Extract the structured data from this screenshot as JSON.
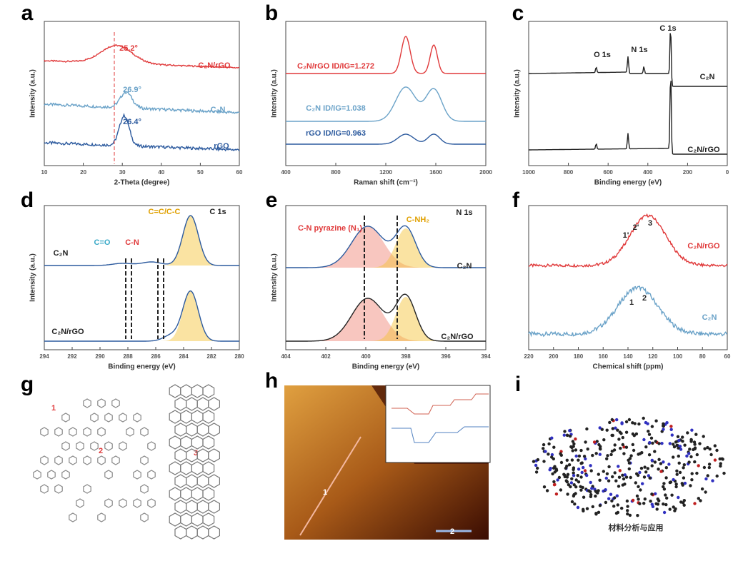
{
  "panels": [
    {
      "label": "a",
      "ylabel": "Intensity (a.u.)",
      "xlabel": "2-Theta (degree)",
      "xticks": [
        "10",
        "20",
        "30",
        "40",
        "50",
        "60"
      ],
      "texts": [
        "25.2°",
        "26.9°",
        "26.4°",
        "C₂N/rGO",
        "C₂N",
        "rGO"
      ]
    },
    {
      "label": "b",
      "ylabel": "Intensity (a.u.)",
      "xlabel": "Raman shift (cm⁻¹)",
      "xticks": [
        "400",
        "800",
        "1200",
        "1600",
        "2000"
      ],
      "texts": [
        "C₂N/rGO ID/IG=1.272",
        "C₂N ID/IG=1.038",
        "rGO ID/IG=0.963"
      ]
    },
    {
      "label": "c",
      "ylabel": "Intensity (a.u.)",
      "xlabel": "Binding energy (eV)",
      "xticks": [
        "1000",
        "800",
        "600",
        "400",
        "200",
        "0"
      ],
      "texts": [
        "C 1s",
        "O 1s",
        "N 1s",
        "C₂N",
        "C₂N/rGO"
      ]
    },
    {
      "label": "d",
      "ylabel": "Intensity (a.u.)",
      "xlabel": "Binding energy (eV)",
      "xticks": [
        "294",
        "292",
        "290",
        "288",
        "286",
        "284",
        "282",
        "280"
      ],
      "texts": [
        "C 1s",
        "C=C/C-C",
        "C=O",
        "C-N",
        "C₂N",
        "C₂N/rGO"
      ]
    },
    {
      "label": "e",
      "ylabel": "Intensity (a.u.)",
      "xlabel": "Binding energy (eV)",
      "xticks": [
        "404",
        "402",
        "400",
        "398",
        "396",
        "394"
      ],
      "texts": [
        "N 1s",
        "C-N pyrazine (N₁)",
        "C-NH₂",
        "C₂N",
        "C₂N/rGO"
      ]
    },
    {
      "label": "f",
      "ylabel": "",
      "xlabel": "Chemical shift (ppm)",
      "xticks": [
        "220",
        "200",
        "180",
        "160",
        "140",
        "120",
        "100",
        "80",
        "60"
      ],
      "texts": [
        "1'",
        "2'",
        "3",
        "C₂N/rGO",
        "1",
        "2",
        "C₂N"
      ]
    },
    {
      "label": "g",
      "texts": [
        "1",
        "2",
        "3"
      ]
    },
    {
      "label": "h",
      "texts": [
        "1",
        "2"
      ]
    },
    {
      "label": "i",
      "texts": [
        "材料分析与应用"
      ]
    }
  ]
}
